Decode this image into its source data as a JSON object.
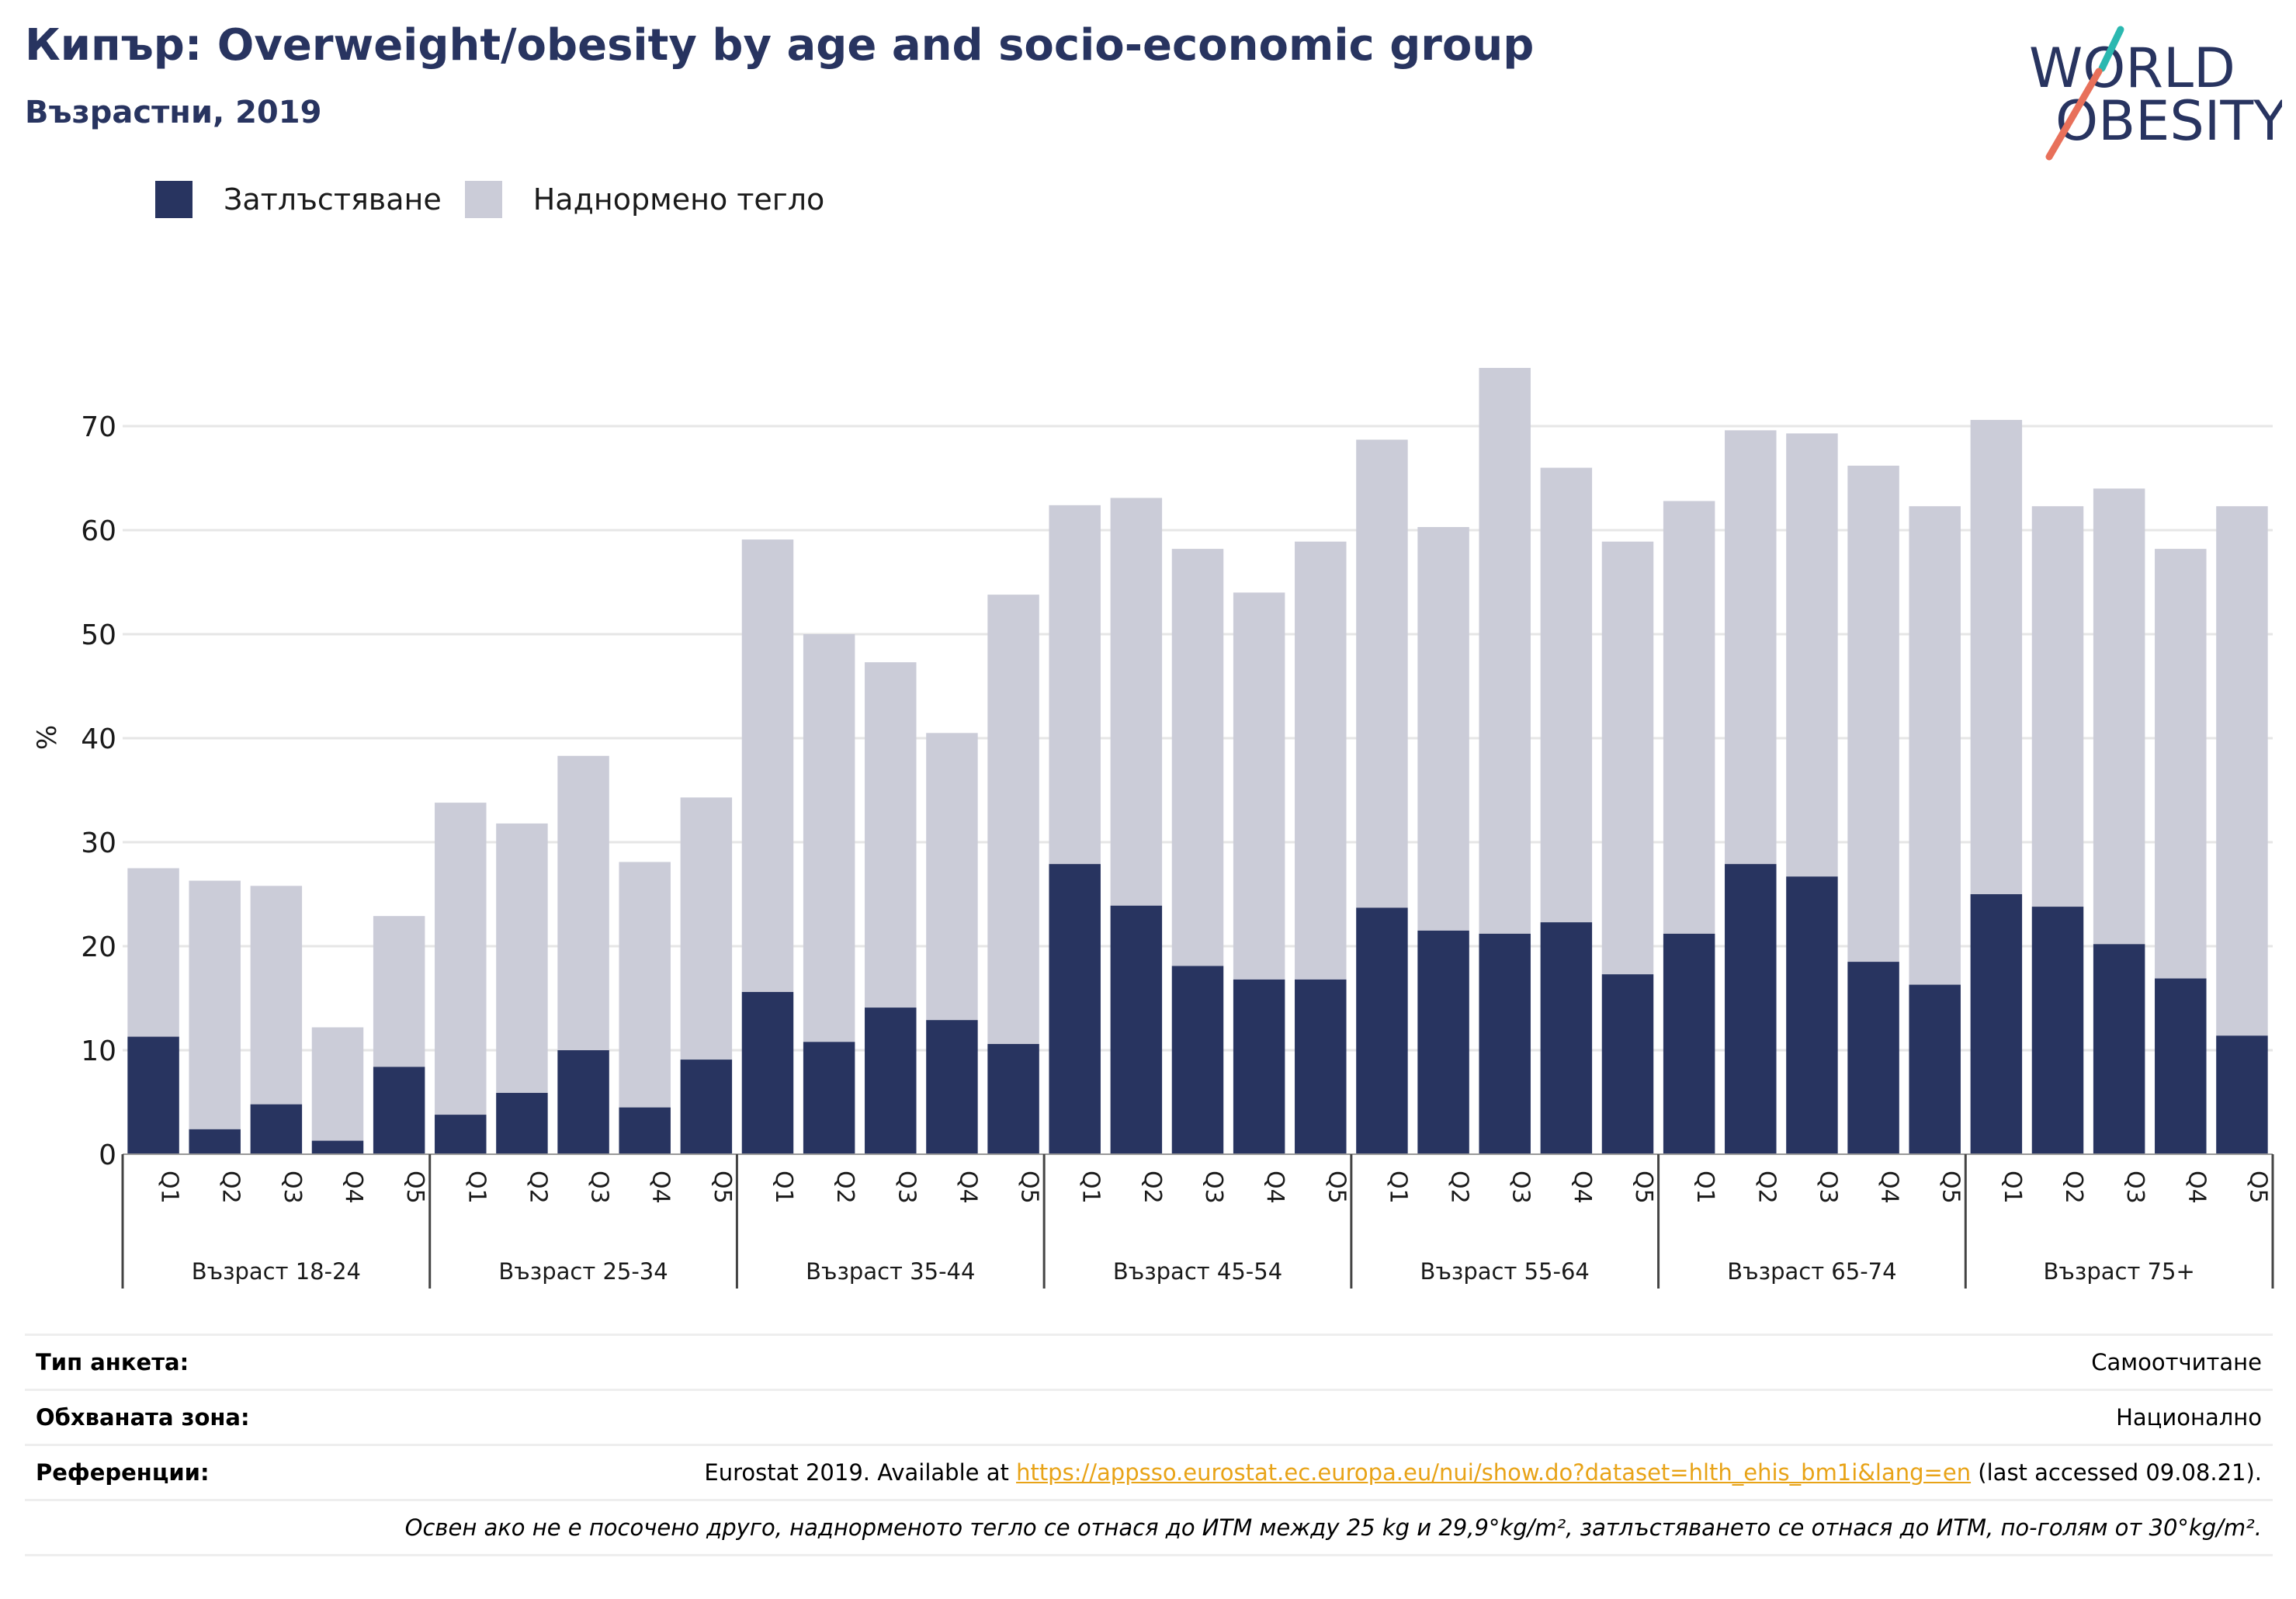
{
  "header": {
    "title": "Кипър: Overweight/obesity by age and socio-economic group",
    "subtitle": "Възрастни, 2019"
  },
  "logo": {
    "line1": "WORLD",
    "line2": "OBESITY"
  },
  "colors": {
    "obesity": "#283460",
    "overweight": "#cbccd8",
    "text": "#283460",
    "link": "#e8a317"
  },
  "chart_data": {
    "type": "bar",
    "stacked": true,
    "ylabel": "%",
    "ylim": [
      0,
      80
    ],
    "yticks": [
      0,
      10,
      20,
      30,
      40,
      50,
      60,
      70
    ],
    "grid": true,
    "legend_position": "top-left",
    "groups": [
      "Възраст 18-24",
      "Възраст 25-34",
      "Възраст 35-44",
      "Възраст 45-54",
      "Възраст 55-64",
      "Възраст 65-74",
      "Възраст 75+"
    ],
    "subcategories": [
      "Q1",
      "Q2",
      "Q3",
      "Q4",
      "Q5"
    ],
    "series": [
      {
        "name": "Затлъстяване",
        "color": "#283460",
        "values": [
          11.3,
          2.4,
          4.8,
          1.3,
          8.4,
          3.8,
          5.9,
          10.0,
          4.5,
          9.1,
          15.6,
          10.8,
          14.1,
          12.9,
          10.6,
          27.9,
          23.9,
          18.1,
          16.8,
          16.8,
          23.7,
          21.5,
          21.2,
          22.3,
          17.3,
          21.2,
          27.9,
          26.7,
          18.5,
          16.3,
          25.0,
          23.8,
          20.2,
          16.9,
          11.4
        ]
      },
      {
        "name": "Наднормено тегло",
        "color": "#cbccd8",
        "values": [
          16.2,
          23.9,
          21.0,
          10.9,
          14.5,
          30.0,
          25.9,
          28.3,
          23.6,
          25.2,
          43.5,
          39.2,
          33.2,
          27.6,
          43.2,
          34.5,
          39.2,
          40.1,
          37.2,
          42.1,
          45.0,
          38.8,
          54.4,
          43.7,
          41.6,
          41.6,
          41.7,
          42.6,
          47.7,
          46.0,
          45.6,
          38.5,
          43.8,
          41.3,
          50.9
        ]
      }
    ]
  },
  "info": {
    "survey_label": "Тип анкета:",
    "survey_value": "Самоотчитане",
    "area_label": "Обхваната зона:",
    "area_value": "Национално",
    "ref_label": "Референции:",
    "ref_prefix": "Eurostat 2019. Available at ",
    "ref_link": "https://appsso.eurostat.ec.europa.eu/nui/show.do?dataset=hlth_ehis_bm1i&lang=en",
    "ref_suffix": " (last accessed 09.08.21).",
    "note": "Освен ако не е посочено друго, наднорменото тегло се отнася до ИТМ между 25 kg и 29,9°kg/m², затлъстяването се отнася до ИТМ, по-голям от 30°kg/m²."
  }
}
